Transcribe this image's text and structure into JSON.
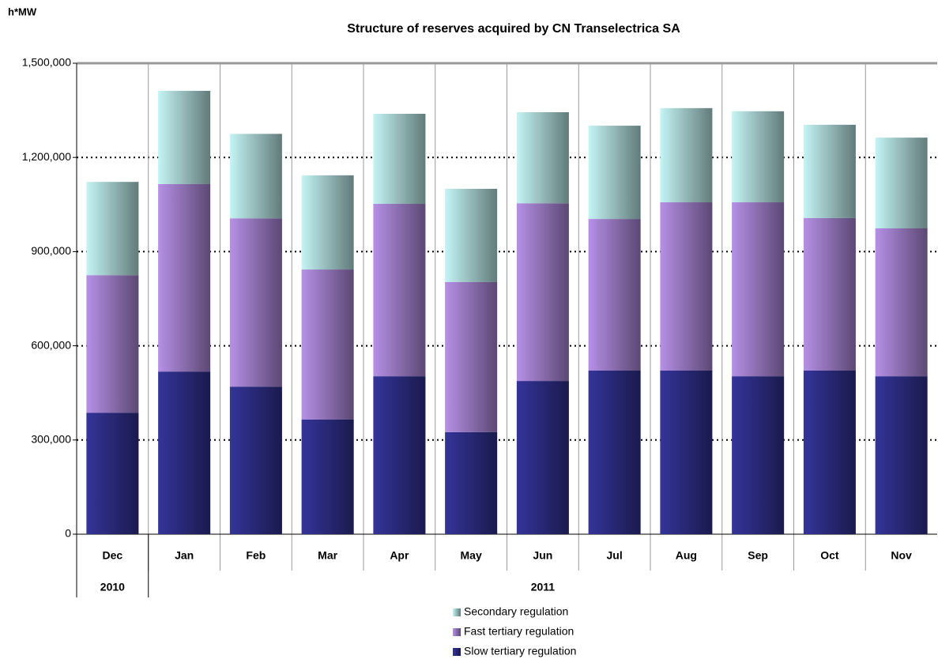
{
  "chart_data": {
    "type": "stacked_bar",
    "title": "Structure of reserves acquired by CN Transelectrica SA",
    "y_label": "h*MW",
    "category_groups": [
      {
        "label": "2010",
        "categories": [
          "Dec"
        ]
      },
      {
        "label": "2011",
        "categories": [
          "Jan",
          "Feb",
          "Mar",
          "Apr",
          "May",
          "Jun",
          "Jul",
          "Aug",
          "Sep",
          "Oct",
          "Nov"
        ]
      }
    ],
    "series": [
      {
        "name": "Slow tertiary regulation",
        "color": "#34349a",
        "values": [
          387000,
          518000,
          470000,
          365000,
          503000,
          325000,
          488000,
          521000,
          521000,
          503000,
          521000,
          503000
        ]
      },
      {
        "name": "Fast tertiary regulation",
        "color": "#b690e6",
        "values": [
          438000,
          597000,
          536000,
          478000,
          549000,
          478000,
          566000,
          483000,
          536000,
          554000,
          486000,
          471000
        ]
      },
      {
        "name": "Secondary regulation",
        "color": "#c4f4f4",
        "values": [
          297000,
          297000,
          269000,
          300000,
          287000,
          297000,
          290000,
          297000,
          300000,
          290000,
          297000,
          289000
        ]
      }
    ],
    "ylim": [
      0,
      1500000
    ],
    "yticks": [
      {
        "value": 0,
        "label": "0"
      },
      {
        "value": 300000,
        "label": "300,000"
      },
      {
        "value": 600000,
        "label": "600,000"
      },
      {
        "value": 900000,
        "label": "900,000"
      },
      {
        "value": 1200000,
        "label": "1,200,000"
      },
      {
        "value": 1500000,
        "label": "1,500,000"
      }
    ],
    "grid": true,
    "legend": "bottom"
  }
}
